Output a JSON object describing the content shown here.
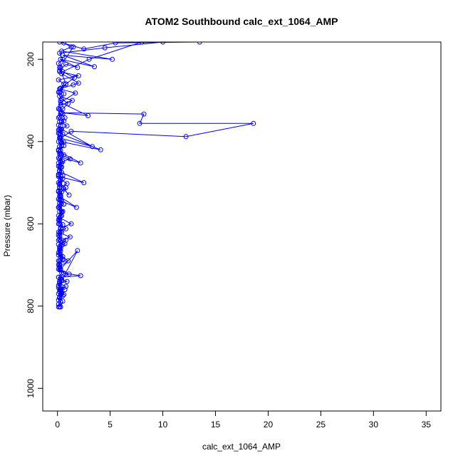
{
  "chart_data": {
    "type": "scatter",
    "title": "ATOM2 Southbound calc_ext_1064_AMP",
    "xlabel": "calc_ext_1064_AMP",
    "ylabel": "Pressure (mbar)",
    "xlim": [
      -1.4,
      36.4
    ],
    "ylim": [
      1055,
      158
    ],
    "y_axis_inverted": true,
    "x_ticks": [
      0,
      5,
      10,
      15,
      20,
      25,
      30,
      35
    ],
    "y_ticks": [
      200,
      400,
      600,
      800,
      1000
    ],
    "grid": false,
    "legend": "none",
    "colors": {
      "series": "#0000ff",
      "axis": "#000000"
    },
    "series": [
      {
        "marker": "open-circle",
        "line": true,
        "x": [
          0.1,
          0.3,
          0.2,
          0.5,
          0.4,
          0.2,
          0.7,
          0.3,
          0.2,
          0.9,
          0.4,
          0.1,
          2.2,
          0.6,
          0.3,
          0.2,
          1.0,
          0.5,
          0.2,
          0.3,
          0.1,
          0.8,
          0.2,
          0.4,
          0.3,
          1.3,
          0.2,
          0.5,
          0.2,
          0.4,
          1.8,
          0.3,
          0.2,
          0.6,
          1.1,
          0.2,
          0.3,
          0.1,
          2.5,
          0.4,
          0.2,
          0.5,
          0.3,
          2.2,
          0.2,
          0.6,
          0.3,
          4.1,
          0.2,
          0.4,
          3.3,
          0.3,
          1.3,
          12.2,
          18.6,
          7.8,
          8.2,
          0.4,
          2.9,
          0.3,
          1.7,
          0.2,
          1.5,
          2.0,
          0.4,
          0.2,
          0.8,
          1.9,
          0.3,
          3.5,
          0.5,
          5.2,
          0.4,
          1.3,
          0.6,
          0.2,
          2.5,
          5.5,
          13.5
        ],
        "y": [
          802,
          790,
          780,
          775,
          770,
          760,
          760,
          755,
          745,
          740,
          735,
          730,
          726,
          720,
          712,
          705,
          690,
          680,
          672,
          660,
          650,
          640,
          630,
          620,
          610,
          600,
          585,
          570,
          556,
          545,
          560,
          535,
          525,
          515,
          530,
          505,
          495,
          485,
          500,
          475,
          460,
          448,
          438,
          452,
          425,
          410,
          400,
          420,
          380,
          370,
          412,
          392,
          375,
          388,
          356,
          356,
          333,
          330,
          337,
          305,
          282,
          272,
          262,
          258,
          235,
          227,
          212,
          220,
          200,
          218,
          190,
          200,
          180,
          170,
          160,
          158,
          175,
          160,
          158
        ]
      },
      {
        "marker": "open-circle",
        "line": true,
        "x": [
          0.2,
          0.1,
          0.3,
          0.2,
          0.6,
          0.1,
          0.2,
          0.3,
          1.1,
          0.2,
          0.1,
          0.2,
          0.5,
          0.1,
          0.3,
          0.2,
          0.7,
          0.2,
          0.1,
          0.3,
          0.8,
          0.2,
          0.1,
          0.4,
          0.2,
          0.1,
          0.6,
          0.2,
          0.3,
          0.1,
          0.2,
          0.9,
          0.3,
          0.1,
          0.2,
          0.4,
          0.1,
          1.2,
          0.3,
          0.1,
          0.2,
          0.6,
          0.2,
          0.3,
          0.1,
          0.9,
          0.2,
          0.1,
          0.5,
          0.2,
          0.3,
          1.4,
          0.2,
          0.1,
          0.3,
          0.6,
          0.1,
          2.0,
          0.2,
          0.3,
          0.1,
          0.5,
          0.2,
          4.5,
          10.0
        ],
        "y": [
          802,
          785,
          772,
          765,
          772,
          755,
          742,
          732,
          722,
          712,
          700,
          690,
          686,
          676,
          666,
          656,
          648,
          638,
          628,
          618,
          612,
          600,
          590,
          580,
          570,
          560,
          552,
          542,
          532,
          522,
          512,
          502,
          492,
          482,
          472,
          462,
          452,
          442,
          432,
          422,
          412,
          402,
          392,
          382,
          372,
          362,
          352,
          342,
          332,
          322,
          312,
          300,
          290,
          280,
          270,
          260,
          250,
          240,
          230,
          220,
          210,
          200,
          185,
          172,
          158
        ]
      },
      {
        "marker": "open-circle",
        "line": true,
        "x": [
          0.3,
          0.5,
          0.2,
          0.4,
          0.3,
          0.8,
          0.2,
          0.4,
          1.9,
          0.3,
          0.2,
          0.5,
          0.3,
          0.2,
          0.4,
          0.3,
          1.2,
          0.2,
          0.3,
          0.5,
          0.2,
          0.3,
          0.4,
          0.2,
          0.6,
          0.3,
          0.2,
          0.4,
          0.8,
          0.2,
          0.3,
          0.5,
          0.2,
          0.3,
          0.4,
          0.2,
          0.6,
          0.3,
          0.2,
          0.4,
          0.3,
          0.5,
          0.2,
          0.3,
          0.4,
          0.7,
          0.3,
          0.5,
          1.0,
          0.4,
          0.6,
          0.3,
          0.8,
          1.6,
          0.5,
          3.0,
          8.0
        ],
        "y": [
          802,
          788,
          778,
          768,
          758,
          752,
          745,
          738,
          665,
          710,
          698,
          688,
          675,
          664,
          652,
          642,
          632,
          622,
          612,
          602,
          592,
          582,
          572,
          562,
          552,
          542,
          532,
          522,
          512,
          502,
          492,
          482,
          472,
          462,
          452,
          442,
          432,
          422,
          412,
          402,
          392,
          382,
          372,
          362,
          352,
          342,
          332,
          320,
          308,
          296,
          284,
          272,
          260,
          245,
          230,
          200,
          158
        ]
      },
      {
        "marker": "open-circle",
        "line": true,
        "x": [
          0.1,
          0.2,
          0.1,
          0.3,
          0.1,
          0.2,
          0.1,
          0.4,
          0.1,
          0.2,
          0.1,
          0.3,
          0.1,
          0.2,
          0.5,
          0.1,
          0.2,
          0.1,
          0.3,
          0.1,
          0.2,
          0.1,
          0.4,
          0.1,
          0.2,
          0.1,
          0.3,
          0.1,
          0.2,
          0.1,
          0.5,
          0.1,
          0.2,
          0.1,
          0.3,
          0.1,
          0.2,
          0.1,
          0.4,
          0.1,
          0.2,
          0.1,
          0.3,
          0.1,
          0.6,
          0.2,
          0.1,
          0.3,
          0.2,
          0.8,
          0.2,
          1.5
        ],
        "y": [
          795,
          780,
          770,
          760,
          750,
          740,
          730,
          720,
          710,
          700,
          690,
          680,
          670,
          660,
          650,
          640,
          630,
          620,
          610,
          600,
          590,
          580,
          570,
          560,
          550,
          540,
          530,
          520,
          510,
          500,
          490,
          480,
          470,
          460,
          450,
          440,
          430,
          420,
          410,
          400,
          390,
          380,
          370,
          360,
          350,
          340,
          320,
          300,
          280,
          260,
          220,
          170
        ]
      }
    ]
  }
}
